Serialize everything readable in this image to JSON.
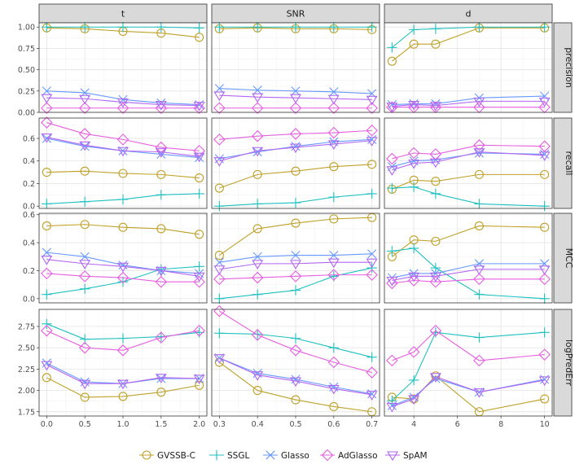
{
  "chart_data": {
    "type": "line",
    "facets": {
      "columns": [
        "t",
        "SNR",
        "d"
      ],
      "rows": [
        "precision",
        "recall",
        "MCC",
        "logPredErr"
      ]
    },
    "x": {
      "t": [
        0.0,
        0.5,
        1.0,
        1.5,
        2.0
      ],
      "SNR": [
        0.3,
        0.4,
        0.5,
        0.6,
        0.7
      ],
      "d": [
        3,
        4,
        5,
        7,
        10
      ]
    },
    "x_ticks": {
      "t": [
        "0.0",
        "0.5",
        "1.0",
        "1.5",
        "2.0"
      ],
      "SNR": [
        "0.3",
        "0.4",
        "0.5",
        "0.6",
        "0.7"
      ],
      "d": [
        "4",
        "6",
        "8",
        "10"
      ]
    },
    "x_tick_values": {
      "t": [
        0.0,
        0.5,
        1.0,
        1.5,
        2.0
      ],
      "SNR": [
        0.3,
        0.4,
        0.5,
        0.6,
        0.7
      ],
      "d": [
        4,
        6,
        8,
        10
      ]
    },
    "x_limits": {
      "t": [
        -0.1,
        2.1
      ],
      "SNR": [
        0.28,
        0.72
      ],
      "d": [
        2.65,
        10.35
      ]
    },
    "y_limits": {
      "precision": [
        0.0,
        1.05
      ],
      "recall": [
        -0.02,
        0.78
      ],
      "MCC": [
        -0.03,
        0.61
      ],
      "logPredErr": [
        1.7,
        2.95
      ]
    },
    "y_ticks": {
      "precision": [
        "0.00",
        "0.25",
        "0.50",
        "0.75",
        "1.00"
      ],
      "recall": [
        "0.0",
        "0.2",
        "0.4",
        "0.6"
      ],
      "MCC": [
        "0.0",
        "0.2",
        "0.4",
        "0.6"
      ],
      "logPredErr": [
        "1.75",
        "2.00",
        "2.25",
        "2.50",
        "2.75"
      ]
    },
    "y_tick_values": {
      "precision": [
        0.0,
        0.25,
        0.5,
        0.75,
        1.0
      ],
      "recall": [
        0.0,
        0.2,
        0.4,
        0.6
      ],
      "MCC": [
        0.0,
        0.2,
        0.4,
        0.6
      ],
      "logPredErr": [
        1.75,
        2.0,
        2.25,
        2.5,
        2.75
      ]
    },
    "series": [
      {
        "name": "GVSSB-C",
        "color": "#bfa12a",
        "shape": "circle",
        "values": {
          "t": {
            "precision": [
              0.99,
              0.98,
              0.95,
              0.93,
              0.88
            ],
            "recall": [
              0.3,
              0.31,
              0.29,
              0.28,
              0.25
            ],
            "MCC": [
              0.52,
              0.53,
              0.51,
              0.5,
              0.46
            ],
            "logPredErr": [
              2.15,
              1.92,
              1.93,
              1.98,
              2.06
            ]
          },
          "SNR": {
            "precision": [
              0.98,
              0.99,
              0.98,
              0.98,
              0.97
            ],
            "recall": [
              0.16,
              0.28,
              0.31,
              0.35,
              0.37
            ],
            "MCC": [
              0.31,
              0.5,
              0.54,
              0.57,
              0.58
            ],
            "logPredErr": [
              2.33,
              2.0,
              1.89,
              1.81,
              1.75
            ]
          },
          "d": {
            "precision": [
              0.6,
              0.8,
              0.8,
              0.99,
              0.99
            ],
            "recall": [
              0.15,
              0.23,
              0.22,
              0.28,
              0.28
            ],
            "MCC": [
              0.3,
              0.42,
              0.41,
              0.52,
              0.51
            ],
            "logPredErr": [
              1.92,
              1.9,
              2.17,
              1.75,
              1.9
            ]
          }
        }
      },
      {
        "name": "SSGL",
        "color": "#1fc0c0",
        "shape": "plus",
        "values": {
          "t": {
            "precision": [
              1.0,
              1.0,
              1.0,
              1.0,
              0.99
            ],
            "recall": [
              0.02,
              0.04,
              0.06,
              0.1,
              0.11
            ],
            "MCC": [
              0.03,
              0.07,
              0.12,
              0.21,
              0.23
            ],
            "logPredErr": [
              2.78,
              2.6,
              2.61,
              2.63,
              2.68
            ]
          },
          "SNR": {
            "precision": [
              1.0,
              1.0,
              1.0,
              1.0,
              1.0
            ],
            "recall": [
              0.0,
              0.02,
              0.03,
              0.08,
              0.11
            ],
            "MCC": [
              0.0,
              0.03,
              0.06,
              0.16,
              0.22
            ],
            "logPredErr": [
              2.67,
              2.66,
              2.61,
              2.5,
              2.39
            ]
          },
          "d": {
            "precision": [
              0.76,
              0.97,
              0.98,
              1.0,
              1.0
            ],
            "recall": [
              0.16,
              0.17,
              0.11,
              0.02,
              0.0
            ],
            "MCC": [
              0.34,
              0.36,
              0.22,
              0.03,
              0.0
            ],
            "logPredErr": [
              1.88,
              2.12,
              2.68,
              2.62,
              2.68
            ]
          }
        }
      },
      {
        "name": "Glasso",
        "color": "#6699ff",
        "shape": "cross",
        "values": {
          "t": {
            "precision": [
              0.25,
              0.23,
              0.15,
              0.11,
              0.09
            ],
            "recall": [
              0.6,
              0.53,
              0.49,
              0.46,
              0.43
            ],
            "MCC": [
              0.33,
              0.3,
              0.24,
              0.2,
              0.18
            ],
            "logPredErr": [
              2.32,
              2.1,
              2.08,
              2.14,
              2.14
            ]
          },
          "SNR": {
            "precision": [
              0.28,
              0.26,
              0.25,
              0.24,
              0.22
            ],
            "recall": [
              0.42,
              0.48,
              0.53,
              0.57,
              0.59
            ],
            "MCC": [
              0.26,
              0.3,
              0.31,
              0.31,
              0.32
            ],
            "logPredErr": [
              2.38,
              2.2,
              2.13,
              2.04,
              1.96
            ]
          },
          "d": {
            "precision": [
              0.09,
              0.1,
              0.1,
              0.17,
              0.19
            ],
            "recall": [
              0.35,
              0.4,
              0.41,
              0.47,
              0.46
            ],
            "MCC": [
              0.15,
              0.18,
              0.18,
              0.25,
              0.25
            ],
            "logPredErr": [
              1.82,
              1.92,
              2.14,
              1.98,
              2.13
            ]
          }
        }
      },
      {
        "name": "AdGlasso",
        "color": "#e65fe0",
        "shape": "diamond",
        "values": {
          "t": {
            "precision": [
              0.05,
              0.05,
              0.05,
              0.05,
              0.05
            ],
            "recall": [
              0.74,
              0.64,
              0.59,
              0.52,
              0.49
            ],
            "MCC": [
              0.18,
              0.16,
              0.15,
              0.12,
              0.12
            ],
            "logPredErr": [
              2.7,
              2.5,
              2.47,
              2.62,
              2.7
            ]
          },
          "SNR": {
            "precision": [
              0.05,
              0.05,
              0.05,
              0.05,
              0.05
            ],
            "recall": [
              0.59,
              0.62,
              0.64,
              0.65,
              0.67
            ],
            "MCC": [
              0.14,
              0.15,
              0.16,
              0.17,
              0.17
            ],
            "logPredErr": [
              2.93,
              2.65,
              2.47,
              2.33,
              2.21
            ]
          },
          "d": {
            "precision": [
              0.06,
              0.06,
              0.06,
              0.06,
              0.06
            ],
            "recall": [
              0.42,
              0.47,
              0.46,
              0.54,
              0.53
            ],
            "MCC": [
              0.11,
              0.13,
              0.12,
              0.14,
              0.14
            ],
            "logPredErr": [
              2.35,
              2.45,
              2.7,
              2.35,
              2.42
            ]
          }
        }
      },
      {
        "name": "SpAM",
        "color": "#b266f2",
        "shape": "triangle-down",
        "values": {
          "t": {
            "precision": [
              0.17,
              0.16,
              0.12,
              0.09,
              0.08
            ],
            "recall": [
              0.61,
              0.54,
              0.49,
              0.48,
              0.44
            ],
            "MCC": [
              0.28,
              0.25,
              0.23,
              0.2,
              0.16
            ],
            "logPredErr": [
              2.3,
              2.08,
              2.08,
              2.15,
              2.14
            ]
          },
          "SNR": {
            "precision": [
              0.2,
              0.18,
              0.17,
              0.16,
              0.15
            ],
            "recall": [
              0.4,
              0.49,
              0.52,
              0.55,
              0.58
            ],
            "MCC": [
              0.21,
              0.25,
              0.25,
              0.26,
              0.26
            ],
            "logPredErr": [
              2.38,
              2.18,
              2.11,
              2.02,
              1.95
            ]
          },
          "d": {
            "precision": [
              0.07,
              0.09,
              0.08,
              0.13,
              0.13
            ],
            "recall": [
              0.32,
              0.38,
              0.39,
              0.48,
              0.45
            ],
            "MCC": [
              0.13,
              0.16,
              0.16,
              0.21,
              0.21
            ],
            "logPredErr": [
              1.81,
              1.9,
              2.16,
              1.98,
              2.12
            ]
          }
        }
      }
    ],
    "legend": [
      "GVSSB-C",
      "SSGL",
      "Glasso",
      "AdGlasso",
      "SpAM"
    ],
    "legend_position": "bottom"
  }
}
